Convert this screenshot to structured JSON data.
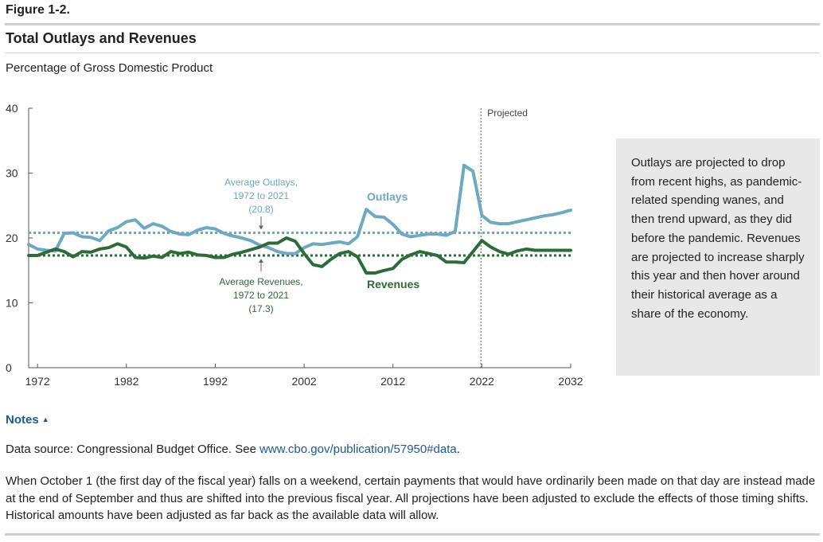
{
  "header": {
    "figure_label": "Figure 1-2.",
    "title": "Total Outlays and Revenues",
    "subtitle": "Percentage of Gross Domestic Product"
  },
  "side_note": "Outlays are projected to drop from recent highs, as pandemic-related spending wanes, and then trend upward, as they did before the pandemic. Revenues are projected to increase sharply this year and then hover around their historical average as a share of the economy.",
  "notes": {
    "toggle_label": "Notes",
    "source_prefix": "Data source: Congressional Budget Office. See ",
    "source_link": "www.cbo.gov/publication/57950#data",
    "source_suffix": ".",
    "footnote": "When October 1 (the first day of the fiscal year) falls on a weekend, certain payments that would have ordinarily been made on that day are instead made at the end of September and thus are shifted into the previous fiscal year. All projections have been adjusted to exclude the effects of those timing shifts. Historical amounts have been adjusted as far back as the available data will allow."
  },
  "colors": {
    "outlays": "#6ea8c2",
    "revenues": "#2e6b3a",
    "side_note_bg": "#e8e8e8",
    "link": "#1a5a9a"
  },
  "chart_data": {
    "type": "line",
    "x": [
      1971,
      1972,
      1973,
      1974,
      1975,
      1976,
      1977,
      1978,
      1979,
      1980,
      1981,
      1982,
      1983,
      1984,
      1985,
      1986,
      1987,
      1988,
      1989,
      1990,
      1991,
      1992,
      1993,
      1994,
      1995,
      1996,
      1997,
      1998,
      1999,
      2000,
      2001,
      2002,
      2003,
      2004,
      2005,
      2006,
      2007,
      2008,
      2009,
      2010,
      2011,
      2012,
      2013,
      2014,
      2015,
      2016,
      2017,
      2018,
      2019,
      2020,
      2021,
      2022,
      2023,
      2024,
      2025,
      2026,
      2027,
      2028,
      2029,
      2030,
      2031,
      2032
    ],
    "series": [
      {
        "name": "Outlays",
        "values": [
          19.0,
          18.3,
          18.1,
          18.0,
          20.7,
          20.8,
          20.2,
          20.1,
          19.6,
          21.1,
          21.6,
          22.5,
          22.8,
          21.5,
          22.2,
          21.8,
          21.0,
          20.6,
          20.5,
          21.2,
          21.6,
          21.4,
          20.7,
          20.3,
          20.0,
          19.6,
          18.9,
          18.5,
          17.9,
          17.6,
          17.6,
          18.5,
          19.1,
          19.0,
          19.2,
          19.4,
          19.1,
          20.2,
          24.4,
          23.3,
          23.2,
          22.1,
          20.6,
          20.2,
          20.4,
          20.6,
          20.6,
          20.4,
          21.0,
          31.2,
          30.3,
          23.5,
          22.4,
          22.2,
          22.2,
          22.5,
          22.8,
          23.1,
          23.4,
          23.6,
          23.9,
          24.3
        ]
      },
      {
        "name": "Revenues",
        "values": [
          17.3,
          17.3,
          17.8,
          18.3,
          17.9,
          17.1,
          17.9,
          17.8,
          18.3,
          18.5,
          19.1,
          18.6,
          17.0,
          16.9,
          17.2,
          17.0,
          17.9,
          17.6,
          17.8,
          17.4,
          17.3,
          17.0,
          17.0,
          17.5,
          17.8,
          18.2,
          18.6,
          19.2,
          19.2,
          20.0,
          19.5,
          17.6,
          15.9,
          15.6,
          16.7,
          17.6,
          17.9,
          17.1,
          14.6,
          14.6,
          15.0,
          15.3,
          16.7,
          17.4,
          17.9,
          17.6,
          17.3,
          16.3,
          16.3,
          16.2,
          17.9,
          19.6,
          18.6,
          17.9,
          17.5,
          18.0,
          18.3,
          18.1,
          18.1,
          18.1,
          18.1,
          18.1
        ]
      }
    ],
    "averages": [
      {
        "name": "Average Outlays",
        "value": 20.8,
        "label_lines": [
          "Average Outlays,",
          "1972 to 2021",
          "(20.8)"
        ]
      },
      {
        "name": "Average Revenues",
        "value": 17.3,
        "label_lines": [
          "Average Revenues,",
          "1972 to 2021",
          "(17.3)"
        ]
      }
    ],
    "series_labels": [
      "Outlays",
      "Revenues"
    ],
    "projection_start": 2021.9,
    "projection_label": "Projected",
    "xlim": [
      1971,
      2032
    ],
    "ylim": [
      0,
      40
    ],
    "x_ticks": [
      1972,
      1982,
      1992,
      2002,
      2012,
      2022,
      2032
    ],
    "y_ticks": [
      0,
      10,
      20,
      30,
      40
    ],
    "grid": false,
    "title": "Total Outlays and Revenues",
    "xlabel": "",
    "ylabel": ""
  }
}
